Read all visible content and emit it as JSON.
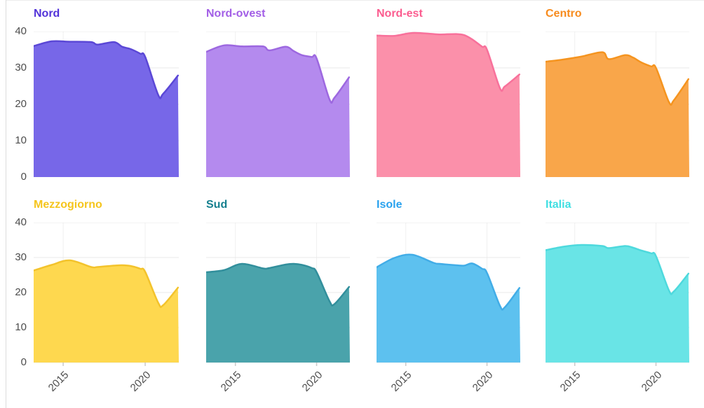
{
  "page": {
    "background": "#ffffff",
    "style": {
      "axis_text_color": "#4d4d4d",
      "gridline_color": "#e8e8e8",
      "vertical_gridline_color": "#f0f0f0",
      "tick_color": "#c9c9c9",
      "page_border_color": "#dcdcdc"
    }
  },
  "chart_data": {
    "type": "area",
    "layout": "small-multiples 2x4, shared axes",
    "grid": true,
    "legend": "none (panel titles colored per series)",
    "xlim": [
      2013.2,
      2022.05
    ],
    "ylim": [
      0,
      40
    ],
    "y_ticks": [
      0,
      10,
      20,
      30,
      40
    ],
    "x_tick_years": [
      2015,
      2020
    ],
    "x_tick_labels": [
      "2015",
      "2020"
    ],
    "x": [
      2013.2,
      2014.3,
      2015.4,
      2016.7,
      2017.1,
      2018.1,
      2018.6,
      2019.1,
      2019.7,
      2020.0,
      2020.8,
      2021.1,
      2022.0
    ],
    "panels": [
      {
        "title": "Nord",
        "title_color": "#5233d9",
        "fill": "#7767e8",
        "stroke": "#5b48d6",
        "values": [
          36.0,
          37.3,
          37.2,
          37.1,
          36.4,
          37.1,
          35.8,
          35.2,
          33.9,
          33.0,
          22.5,
          22.9,
          27.9
        ]
      },
      {
        "title": "Nord-ovest",
        "title_color": "#a25ee6",
        "fill": "#b48aee",
        "stroke": "#9d68e0",
        "values": [
          34.4,
          36.2,
          35.9,
          35.9,
          34.8,
          35.8,
          34.6,
          33.5,
          33.0,
          32.6,
          21.3,
          21.8,
          27.4
        ]
      },
      {
        "title": "Nord-est",
        "title_color": "#fb5c8f",
        "fill": "#fb90aa",
        "stroke": "#f8719b",
        "values": [
          38.9,
          38.8,
          39.6,
          39.3,
          39.2,
          39.3,
          39.0,
          37.8,
          35.8,
          35.0,
          24.4,
          24.9,
          28.2
        ]
      },
      {
        "title": "Centro",
        "title_color": "#f78b1d",
        "fill": "#f9a64a",
        "stroke": "#f5941f",
        "values": [
          31.7,
          32.3,
          33.1,
          34.3,
          32.4,
          33.5,
          32.8,
          31.5,
          30.4,
          30.0,
          20.6,
          21.1,
          26.9
        ]
      },
      {
        "title": "Mezzogiorno",
        "title_color": "#f5c51d",
        "fill": "#fed84f",
        "stroke": "#f3c32c",
        "values": [
          26.3,
          27.9,
          29.2,
          27.3,
          27.3,
          27.7,
          27.8,
          27.6,
          26.8,
          25.9,
          17.0,
          16.4,
          21.4
        ]
      },
      {
        "title": "Sud",
        "title_color": "#16808f",
        "fill": "#4aa3ab",
        "stroke": "#328f9c",
        "values": [
          25.8,
          26.4,
          28.2,
          26.9,
          27.0,
          28.0,
          28.2,
          27.9,
          27.0,
          25.8,
          17.5,
          16.7,
          21.6
        ]
      },
      {
        "title": "Isole",
        "title_color": "#2aa2ee",
        "fill": "#5dc1ef",
        "stroke": "#42ade7",
        "values": [
          27.2,
          29.9,
          30.8,
          28.5,
          28.2,
          27.8,
          27.7,
          28.3,
          26.8,
          25.6,
          16.2,
          15.8,
          21.3
        ]
      },
      {
        "title": "Italia",
        "title_color": "#3fdfe2",
        "fill": "#69e4e6",
        "stroke": "#4ed9dd",
        "values": [
          32.1,
          33.1,
          33.6,
          33.3,
          32.7,
          33.3,
          32.8,
          32.0,
          31.2,
          30.4,
          20.6,
          20.3,
          25.4
        ]
      }
    ]
  }
}
